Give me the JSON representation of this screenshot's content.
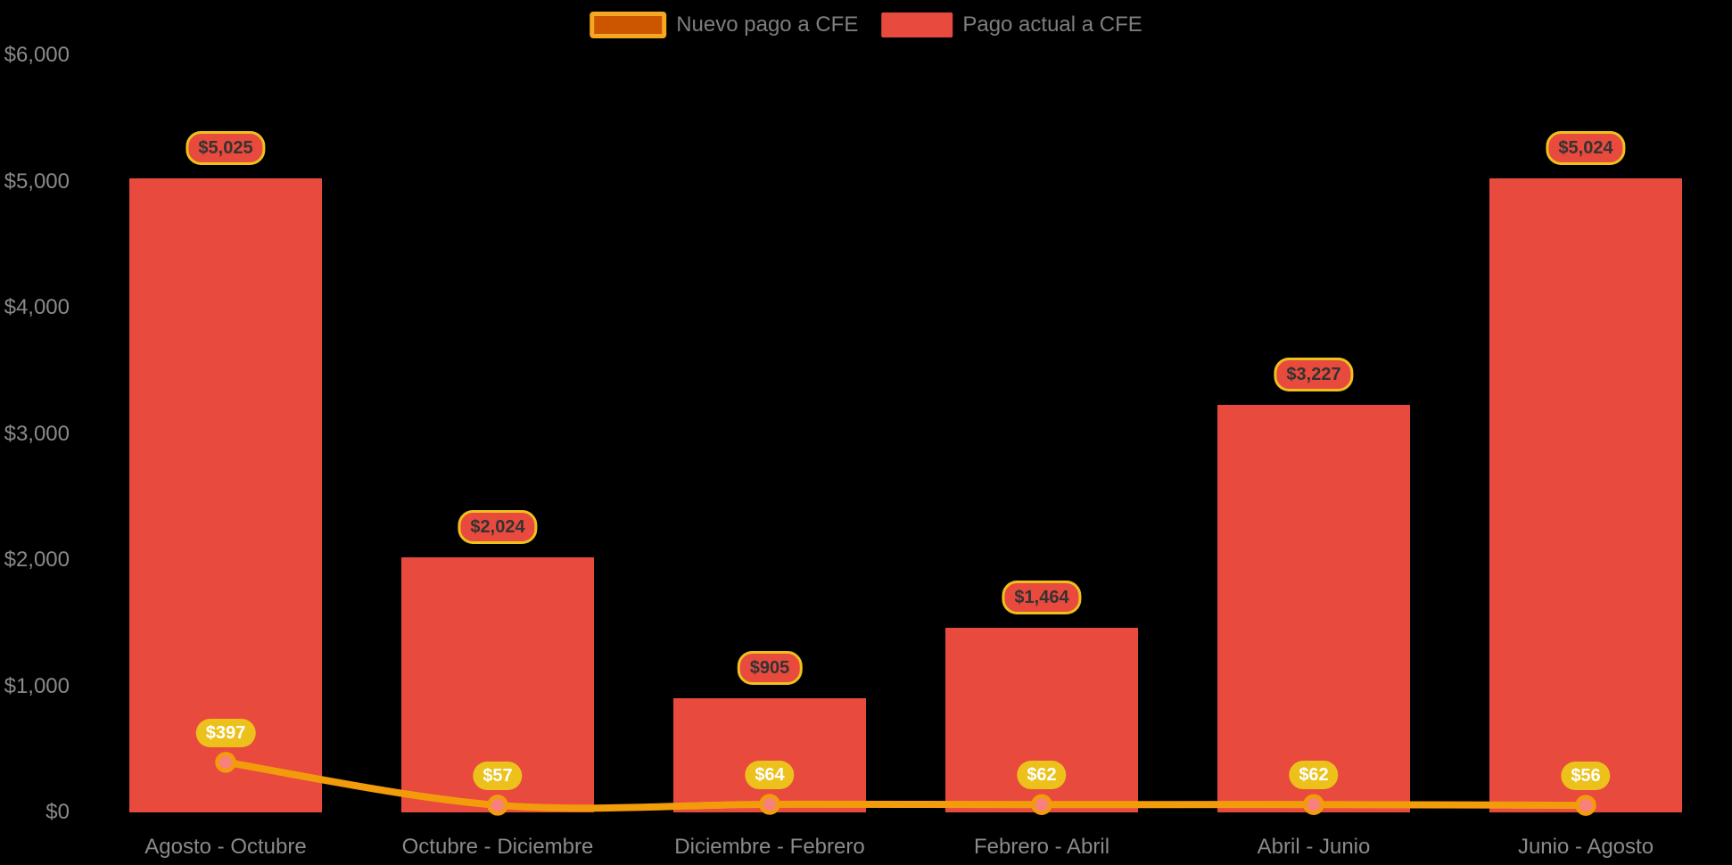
{
  "legend": {
    "items": [
      {
        "id": "nuevo-pago",
        "label": "Nuevo pago a CFE",
        "swatch_fill": "#CC5500",
        "swatch_border": "#F5A623",
        "series_type": "line"
      },
      {
        "id": "pago-actual",
        "label": "Pago actual a CFE",
        "swatch_fill": "#E84A3D",
        "swatch_border": null,
        "series_type": "bar"
      }
    ]
  },
  "chart_data": {
    "type": "bar",
    "subtype": "bar-line-combo",
    "title": "",
    "xlabel": "",
    "ylabel": "",
    "categories": [
      "Agosto - Octubre",
      "Octubre - Diciembre",
      "Diciembre - Febrero",
      "Febrero - Abril",
      "Abril - Junio",
      "Junio - Agosto"
    ],
    "series": [
      {
        "name": "Pago actual a CFE",
        "type": "bar",
        "color": "#E84A3D",
        "values": [
          5025,
          2024,
          905,
          1464,
          3227,
          5024
        ],
        "data_labels": [
          "$5,025",
          "$2,024",
          "$905",
          "$1,464",
          "$3,227",
          "$5,024"
        ]
      },
      {
        "name": "Nuevo pago a CFE",
        "type": "line",
        "color": "#F39C0B",
        "point_fill": "#F8817B",
        "values": [
          397,
          57,
          64,
          62,
          62,
          56
        ],
        "data_labels": [
          "$397",
          "$57",
          "$64",
          "$62",
          "$62",
          "$56"
        ]
      }
    ],
    "ylim": [
      0,
      6000
    ],
    "yticks": [
      {
        "value": 6000,
        "label": "$6,000"
      },
      {
        "value": 5000,
        "label": "$5,000"
      },
      {
        "value": 4000,
        "label": "$4,000"
      },
      {
        "value": 3000,
        "label": "$3,000"
      },
      {
        "value": 2000,
        "label": "$2,000"
      },
      {
        "value": 1000,
        "label": "$1,000"
      },
      {
        "value": 0,
        "label": "$0"
      }
    ],
    "grid": false,
    "legend_position": "top-center",
    "background": "#000000"
  },
  "colors": {
    "background": "#000000",
    "bar": "#E84A3D",
    "line": "#F39C0B",
    "point_fill": "#F8817B",
    "line_value_pill_bg": "#EDC11C",
    "line_value_pill_text": "#FFFFFF",
    "bar_value_pill_bg": "#E84A3D",
    "bar_value_pill_border": "#EDC11C",
    "bar_value_pill_text": "#333333",
    "axis_text": "#8A8A8A",
    "legend_text": "#7E7E7E"
  }
}
